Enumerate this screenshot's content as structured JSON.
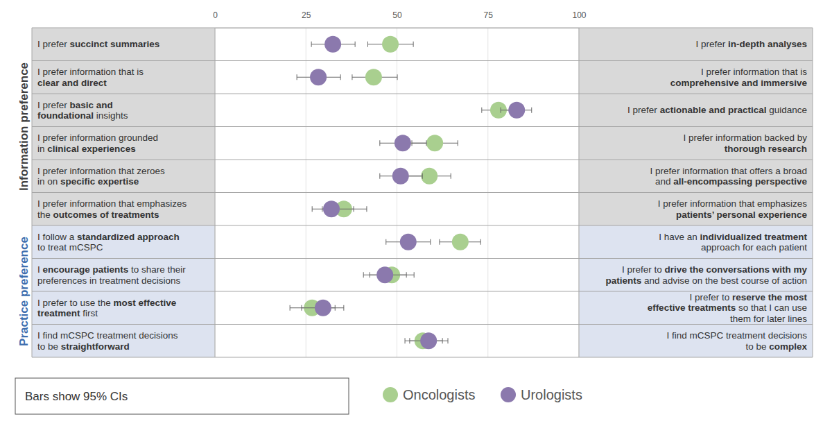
{
  "chart_data": {
    "type": "dot",
    "xlim": [
      0,
      100
    ],
    "xticks": [
      0,
      25,
      50,
      75,
      100
    ],
    "grid": true,
    "annotations": [
      "Bars show 95% CIs"
    ],
    "groups": [
      {
        "name": "Information preference",
        "rows": [
          {
            "left": [
              "I prefer succinct summaries"
            ],
            "left_bold": "succinct summaries",
            "right": [
              "I prefer in-depth analyses"
            ],
            "right_bold": "in-depth analyses"
          },
          {
            "left": [
              "I prefer information that is",
              "clear and direct"
            ],
            "left_bold": "clear and direct",
            "right": [
              "I prefer information that is",
              "comprehensive and immersive"
            ],
            "right_bold": "comprehensive and immersive"
          },
          {
            "left": [
              "I prefer basic and",
              "foundational insights"
            ],
            "left_bold": "basic and foundational",
            "right": [
              "I prefer actionable and practical guidance"
            ],
            "right_bold": "actionable and practical"
          },
          {
            "left": [
              "I prefer information grounded",
              "in clinical experiences"
            ],
            "left_bold": "clinical experiences",
            "right": [
              "I prefer information backed by",
              "thorough research"
            ],
            "right_bold": "thorough research"
          },
          {
            "left": [
              "I prefer information that zeroes",
              "in on specific expertise"
            ],
            "left_bold": "specific expertise",
            "right": [
              "I prefer information that offers a broad",
              "and all-encompassing perspective"
            ],
            "right_bold": "all-encompassing perspective"
          },
          {
            "left": [
              "I prefer information that emphasizes",
              "the outcomes of treatments"
            ],
            "left_bold": "outcomes of treatments",
            "right": [
              "I prefer information that emphasizes",
              "patients’ personal experience"
            ],
            "right_bold": "patients’ personal experience"
          }
        ]
      },
      {
        "name": "Practice preference",
        "rows": [
          {
            "left": [
              "I follow a standardized approach",
              "to treat mCSPC"
            ],
            "left_bold": "standardized approach",
            "right": [
              "I have an individualized treatment",
              "approach for each patient"
            ],
            "right_bold": "individualized treatment"
          },
          {
            "left": [
              "I encourage patients to share their",
              "preferences in treatment decisions"
            ],
            "left_bold": "encourage patients",
            "right": [
              "I prefer to drive the conversations with my",
              "patients and advise on the best course of action"
            ],
            "right_bold": "drive the conversations with my patients"
          },
          {
            "left": [
              "I prefer to use the most effective",
              "treatment first"
            ],
            "left_bold": "most effective treatment",
            "right": [
              "I prefer to reserve the most",
              "effective treatments so that I can use",
              "them for later lines"
            ],
            "right_bold": "reserve the most effective treatments"
          },
          {
            "left": [
              "I find mCSPC treatment decisions",
              "to be straightforward"
            ],
            "left_bold": "straightforward",
            "right": [
              "I find mCSPC treatment decisions",
              "to be complex"
            ],
            "right_bold": "complex"
          }
        ]
      }
    ],
    "series": [
      {
        "name": "Oncologists",
        "color": "#a9cf8f",
        "values": [
          48.2,
          43.6,
          77.9,
          60.4,
          58.9,
          35.4,
          67.4,
          48.6,
          26.7,
          57.1
        ],
        "ci_low": [
          42.0,
          37.7,
          73.3,
          54.1,
          52.2,
          29.5,
          61.7,
          42.5,
          20.6,
          52.2
        ],
        "ci_high": [
          54.5,
          50.1,
          82.9,
          66.7,
          64.8,
          41.7,
          73.0,
          54.7,
          33.0,
          62.5
        ]
      },
      {
        "name": "Urologists",
        "color": "#8b79ad",
        "values": [
          32.4,
          28.4,
          82.9,
          51.6,
          51.0,
          32.0,
          53.1,
          46.7,
          29.7,
          58.7
        ],
        "ci_low": [
          26.5,
          22.5,
          78.5,
          45.3,
          45.3,
          26.7,
          47.0,
          40.8,
          23.8,
          53.5
        ],
        "ci_high": [
          38.5,
          34.5,
          87.0,
          58.1,
          57.0,
          38.1,
          59.2,
          52.6,
          35.4,
          64.0
        ]
      }
    ]
  }
}
